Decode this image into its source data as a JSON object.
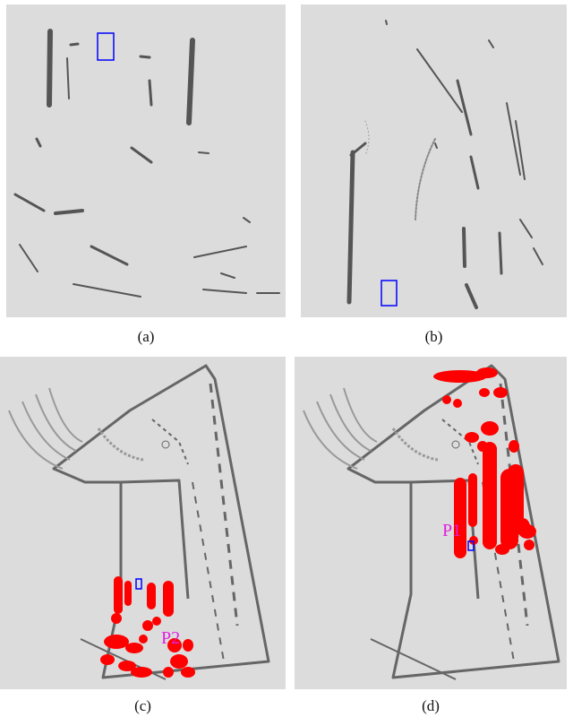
{
  "figure": {
    "captions": [
      "(a)",
      "(b)",
      "(c)",
      "(d)"
    ],
    "point_labels": {
      "c": "P2",
      "d": "P1"
    },
    "colors": {
      "background": "#dcdcdc",
      "scan": "#555555",
      "marker": "#ff0000",
      "query_box": "#0000ff",
      "label": "#e020e0"
    }
  }
}
